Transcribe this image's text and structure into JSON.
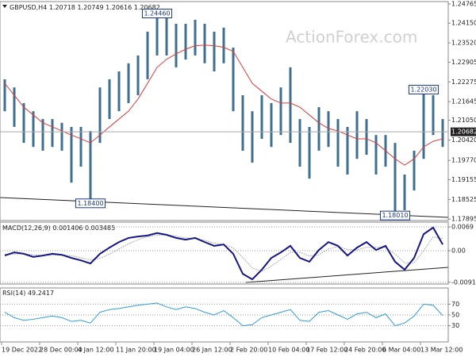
{
  "chart_data": [
    {
      "type": "ohlc",
      "title": "GBPUSD,H4",
      "quote": [
        1.20718,
        1.20749,
        1.20616,
        1.20682
      ],
      "watermark": "ActionForex.com",
      "color": "#3f6f8e",
      "categories": [
        "19 Dec 2022",
        null,
        null,
        null,
        "28 Dec 00:00",
        null,
        null,
        null,
        "4 Jan 12:00",
        null,
        null,
        null,
        "11 Jan 20:00",
        null,
        null,
        null,
        "19 Jan 04:00",
        null,
        null,
        null,
        "26 Jan 12:00",
        null,
        null,
        null,
        "2 Feb 20:00",
        null,
        null,
        null,
        "10 Feb 04:00",
        null,
        null,
        null,
        "17 Feb 12:00",
        null,
        null,
        null,
        "24 Feb 20:00",
        null,
        null,
        null,
        "6 Mar 04:00",
        null,
        null,
        null,
        "13 Mar 12:00",
        null,
        null
      ],
      "high": [
        1.2236,
        1.221,
        1.216,
        1.2134,
        1.2109,
        1.2109,
        1.2097,
        1.2084,
        1.2084,
        1.2071,
        1.221,
        1.2236,
        1.2261,
        1.2287,
        1.2312,
        1.2388,
        1.2446,
        1.2438,
        1.2413,
        1.2413,
        1.2426,
        1.2413,
        1.2388,
        1.2401,
        1.2337,
        1.2185,
        1.2134,
        1.2185,
        1.216,
        1.221,
        1.2274,
        1.2109,
        1.2084,
        1.2147,
        1.2134,
        1.2109,
        1.2084,
        1.2134,
        1.2109,
        1.2058,
        1.2058,
        1.2033,
        1.1932,
        1.2008,
        1.2203,
        1.2185,
        1.2109
      ],
      "low": [
        1.2134,
        1.2084,
        1.2033,
        1.202,
        1.2008,
        1.202,
        1.2008,
        1.1906,
        1.1957,
        1.184,
        1.2033,
        1.2109,
        1.2134,
        1.216,
        1.2185,
        1.2236,
        1.2312,
        1.2312,
        1.2274,
        1.2299,
        1.2312,
        1.2287,
        1.2261,
        1.2287,
        1.2134,
        1.2008,
        1.197,
        1.2046,
        1.202,
        1.2058,
        1.2033,
        1.1957,
        1.1919,
        1.2008,
        1.202,
        1.1957,
        1.1932,
        1.1982,
        1.1995,
        1.1932,
        1.1957,
        1.1801,
        1.1818,
        1.1881,
        1.1982,
        1.2058,
        1.202
      ],
      "ma": {
        "color": "#e23b3b",
        "values": [
          1.2223,
          1.2185,
          1.2147,
          1.2122,
          1.2097,
          1.2084,
          1.2071,
          1.2058,
          1.2046,
          1.2033,
          1.2058,
          1.2084,
          1.2109,
          1.2134,
          1.2173,
          1.2223,
          1.2274,
          1.23,
          1.2317,
          1.2332,
          1.2343,
          1.2345,
          1.2343,
          1.2338,
          1.2325,
          1.2274,
          1.2223,
          1.2198,
          1.2173,
          1.216,
          1.216,
          1.2147,
          1.2122,
          1.2097,
          1.2079,
          1.2071,
          1.2058,
          1.2046,
          1.2046,
          1.2033,
          1.2008,
          1.1982,
          1.1962,
          1.1982,
          1.202,
          1.2038,
          1.2046
        ]
      },
      "last": 1.20682,
      "annotations": [
        {
          "value": 1.2446,
          "label": "1.24460",
          "at": 16
        },
        {
          "value": 1.184,
          "label": "1.18400",
          "at": 9
        },
        {
          "value": 1.2203,
          "label": "1.22030",
          "at": 44
        },
        {
          "value": 1.1801,
          "label": "1.18010",
          "at": 41
        }
      ],
      "ylim": [
        1.1785,
        1.2484
      ],
      "yticks": [
        1.24765,
        {
          "value": 1.2415,
          "label": "1.24150"
        },
        {
          "value": 1.2352,
          "label": "1.23520"
        },
        1.22905,
        1.22275,
        1.21645,
        {
          "value": 1.2105,
          "label": "1.21050"
        },
        {
          "value": 1.2042,
          "label": "1.20420"
        },
        {
          "value": 1.1977,
          "label": "1.19770"
        },
        1.19155,
        1.18525,
        1.17895
      ]
    },
    {
      "type": "macd",
      "title": "MACD(12,26,9)",
      "quote": [
        0.001406,
        0.003485
      ],
      "series": [
        {
          "color": "#16168a",
          "values": [
            -0.0014,
            -0.0005,
            -0.0009,
            -0.0018,
            -0.0014,
            -0.0009,
            -0.0012,
            -0.0021,
            -0.0028,
            -0.0037,
            -0.0009,
            0.0009,
            0.0025,
            0.0037,
            0.0041,
            0.0044,
            0.0051,
            0.0046,
            0.0037,
            0.0032,
            0.0037,
            0.0025,
            0.0014,
            0.0018,
            -0.0009,
            -0.0067,
            -0.0083,
            -0.0055,
            -0.0021,
            -0.0005,
            0.0014,
            -0.0021,
            -0.0032,
            0.0002,
            0.0025,
            0.0014,
            -0.0014,
            0.0009,
            0.0025,
            0.0002,
            0.0014,
            -0.0032,
            -0.0055,
            -0.0021,
            0.0048,
            0.0067,
            0.0018
          ]
        },
        {
          "color": "#b0b0b0",
          "values": [
            -0.001,
            -0.001,
            -0.0009,
            -0.0012,
            -0.0014,
            -0.0013,
            -0.0012,
            -0.0015,
            -0.002,
            -0.0027,
            -0.0022,
            -0.001,
            0.0005,
            0.002,
            0.0032,
            0.004,
            0.0045,
            0.0046,
            0.0042,
            0.0037,
            0.0035,
            0.003,
            0.0022,
            0.0018,
            0.0008,
            -0.002,
            -0.005,
            -0.006,
            -0.0045,
            -0.0025,
            -0.0005,
            -0.0005,
            -0.0015,
            -0.0012,
            0.0005,
            0.0012,
            0.0004,
            0.0002,
            0.001,
            0.001,
            0.001,
            -0.001,
            -0.0035,
            -0.0035,
            0.0,
            0.004,
            0.0035
          ]
        }
      ],
      "ylim": [
        -0.00966,
        0.00828
      ],
      "yticks": [
        0.0069,
        {
          "value": 0,
          "label": "0.00"
        },
        -0.009158
      ]
    },
    {
      "type": "rsi",
      "title": "RSI(14)",
      "quote": [
        49.2417
      ],
      "series": [
        {
          "color": "#2e9be6",
          "values": [
            55,
            45,
            40,
            42,
            45,
            48,
            45,
            38,
            40,
            35,
            55,
            60,
            62,
            65,
            68,
            70,
            72,
            65,
            60,
            65,
            62,
            55,
            50,
            58,
            45,
            30,
            32,
            45,
            50,
            55,
            60,
            40,
            38,
            55,
            58,
            50,
            42,
            52,
            55,
            45,
            52,
            30,
            35,
            48,
            70,
            68,
            49
          ]
        }
      ],
      "ylim": [
        0,
        100
      ],
      "yticks": [
        70,
        50,
        30
      ]
    }
  ]
}
